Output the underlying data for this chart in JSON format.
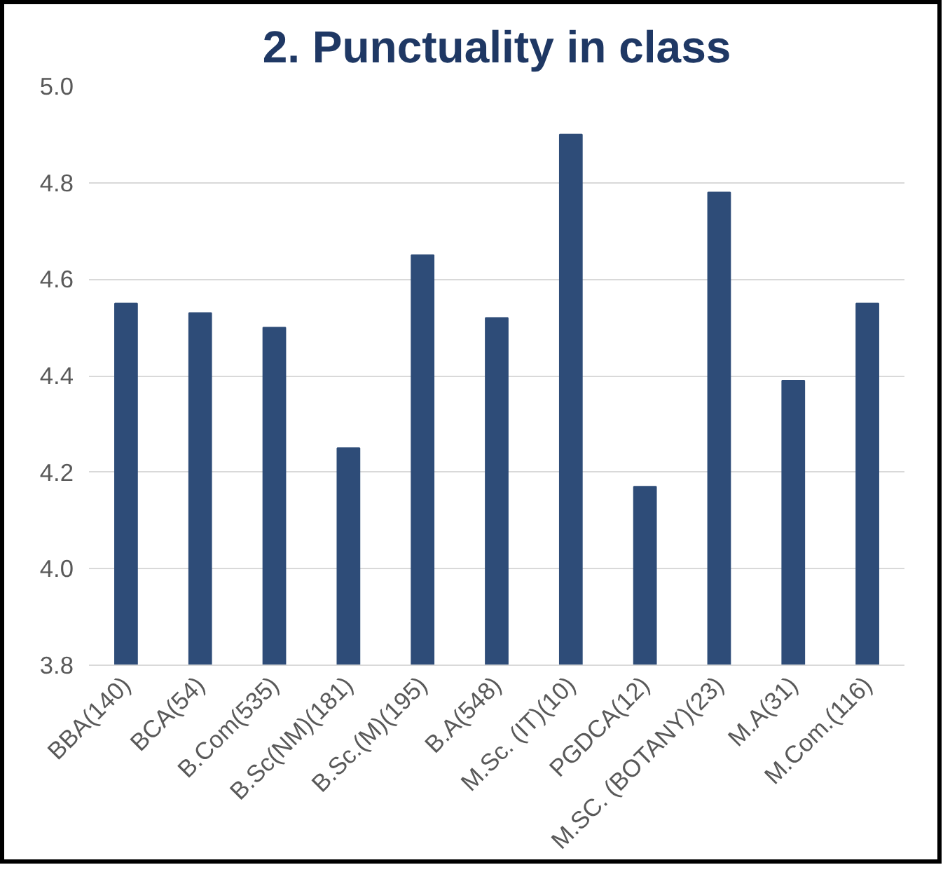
{
  "chart_data": {
    "type": "bar",
    "title": "2. Punctuality in class",
    "categories": [
      "BBA(140)",
      "BCA(54)",
      "B.Com(535)",
      "B.Sc(NM)(181)",
      "B.Sc.(M)(195)",
      "B.A(548)",
      "M.Sc. (IT)(10)",
      "PGDCA(12)",
      "M.SC. (BOTANY)(23)",
      "M.A(31)",
      "M.Com.(116)"
    ],
    "values": [
      4.55,
      4.53,
      4.5,
      4.25,
      4.65,
      4.52,
      4.9,
      4.17,
      4.78,
      4.39,
      4.55
    ],
    "color": "#2e4c78",
    "ylim": [
      3.8,
      5.0
    ],
    "yticks": [
      {
        "value": 3.8,
        "label": "3.8"
      },
      {
        "value": 4.0,
        "label": "4.0"
      },
      {
        "value": 4.2,
        "label": "4.2"
      },
      {
        "value": 4.4,
        "label": "4.4"
      },
      {
        "value": 4.6,
        "label": "4.6"
      },
      {
        "value": 4.8,
        "label": "4.8"
      },
      {
        "value": 5.0,
        "label": "5.0"
      }
    ],
    "grid": "y"
  }
}
